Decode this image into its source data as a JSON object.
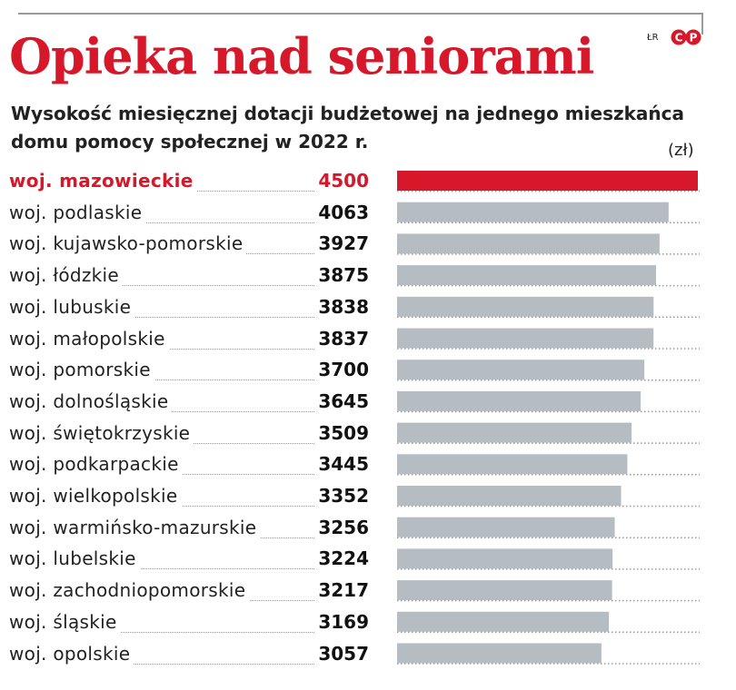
{
  "header": {
    "title": "Opieka nad seniorami",
    "subtitle": "Wysokość miesięcznej dotacji budżetowej na jednego mieszkańca domu pomocy społecznej w 2022 r.",
    "unit": "(zł)",
    "credit": "ŁR"
  },
  "colors": {
    "accent": "#d7182a",
    "bar": "#b5bcc2",
    "dots": "#9a9a9a"
  },
  "chart_data": {
    "type": "bar",
    "orientation": "horizontal",
    "title": "Opieka nad seniorami",
    "subtitle": "Wysokość miesięcznej dotacji budżetowej na jednego mieszkańca domu pomocy społecznej w 2022 r.",
    "unit": "(zł)",
    "categories": [
      "woj. mazowieckie",
      "woj. podlaskie",
      "woj. kujawsko-pomorskie",
      "woj. łódzkie",
      "woj. lubuskie",
      "woj. małopolskie",
      "woj. pomorskie",
      "woj. dolnośląskie",
      "woj. świętokrzyskie",
      "woj. podkarpackie",
      "woj. wielkopolskie",
      "woj. warmińsko-mazurskie",
      "woj. lubelskie",
      "woj. zachodniopomorskie",
      "woj. śląskie",
      "woj. opolskie"
    ],
    "values": [
      4500,
      4063,
      3927,
      3875,
      3838,
      3837,
      3700,
      3645,
      3509,
      3445,
      3352,
      3256,
      3224,
      3217,
      3169,
      3057
    ],
    "value_labels": [
      "4500",
      "4063",
      "3927",
      "3875",
      "3838",
      "3837",
      "3700",
      "3645",
      "3509",
      "3445",
      "3352",
      "3256",
      "3224",
      "3217",
      "3169",
      "3057"
    ],
    "highlight_index": 0,
    "xlim": [
      0,
      4500
    ],
    "grid": false,
    "legend": "none"
  }
}
